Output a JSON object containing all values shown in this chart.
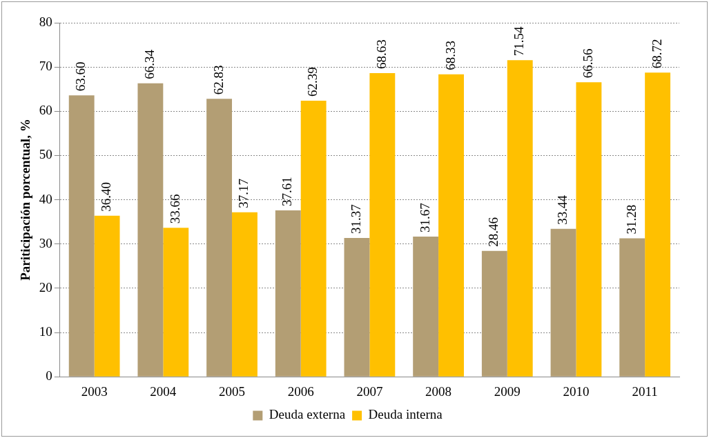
{
  "chart_data": {
    "type": "bar",
    "ylabel": "Pariticipación porcentual, %",
    "categories": [
      "2003",
      "2004",
      "2005",
      "2006",
      "2007",
      "2008",
      "2009",
      "2010",
      "2011"
    ],
    "series": [
      {
        "name": "Deuda externa",
        "color": "#b39e74",
        "values": [
          63.6,
          66.34,
          62.83,
          37.61,
          31.37,
          31.67,
          28.46,
          33.44,
          31.28
        ],
        "value_labels": [
          "63.60",
          "66.34",
          "62.83",
          "37.61",
          "31.37",
          "31.67",
          "28.46",
          "33.44",
          "31.28"
        ]
      },
      {
        "name": "Deuda interna",
        "color": "#ffc000",
        "values": [
          36.4,
          33.66,
          37.17,
          62.39,
          68.63,
          68.33,
          71.54,
          66.56,
          68.72
        ],
        "value_labels": [
          "36.40",
          "33.66",
          "37.17",
          "62.39",
          "68.63",
          "68.33",
          "71.54",
          "66.56",
          "68.72"
        ]
      }
    ],
    "ylim": [
      0,
      80
    ],
    "yticks": [
      0,
      10,
      20,
      30,
      40,
      50,
      60,
      70,
      80
    ],
    "grid": "y",
    "legend": "bottom"
  }
}
